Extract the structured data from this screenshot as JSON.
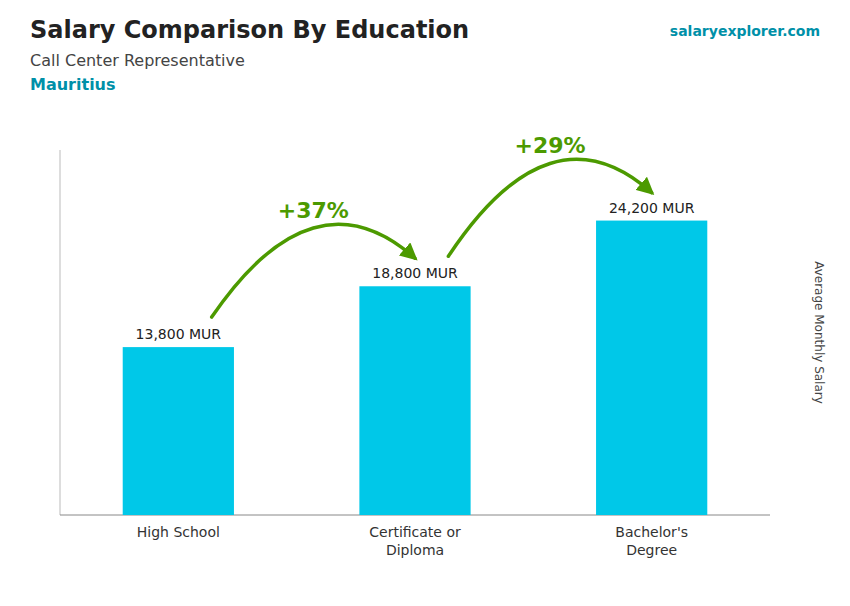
{
  "chart_data": {
    "type": "bar",
    "title": "Salary Comparison By Education",
    "subtitle": [
      "Call Center Representative",
      "Mauritius"
    ],
    "source": "salaryexplorer.com",
    "ylabel": "Average Monthly Salary",
    "categories": [
      "High School",
      "Certificate or\nDiploma",
      "Bachelor's\nDegree"
    ],
    "values": [
      13800,
      18800,
      24200
    ],
    "value_labels": [
      "13,800 MUR",
      "18,800 MUR",
      "24,200 MUR"
    ],
    "data_labels": true,
    "annotations": [
      "+37%",
      "+29%"
    ],
    "color": "#00c8e8",
    "ylim": [
      0,
      30000
    ],
    "tick_labels": false,
    "grid": false
  }
}
